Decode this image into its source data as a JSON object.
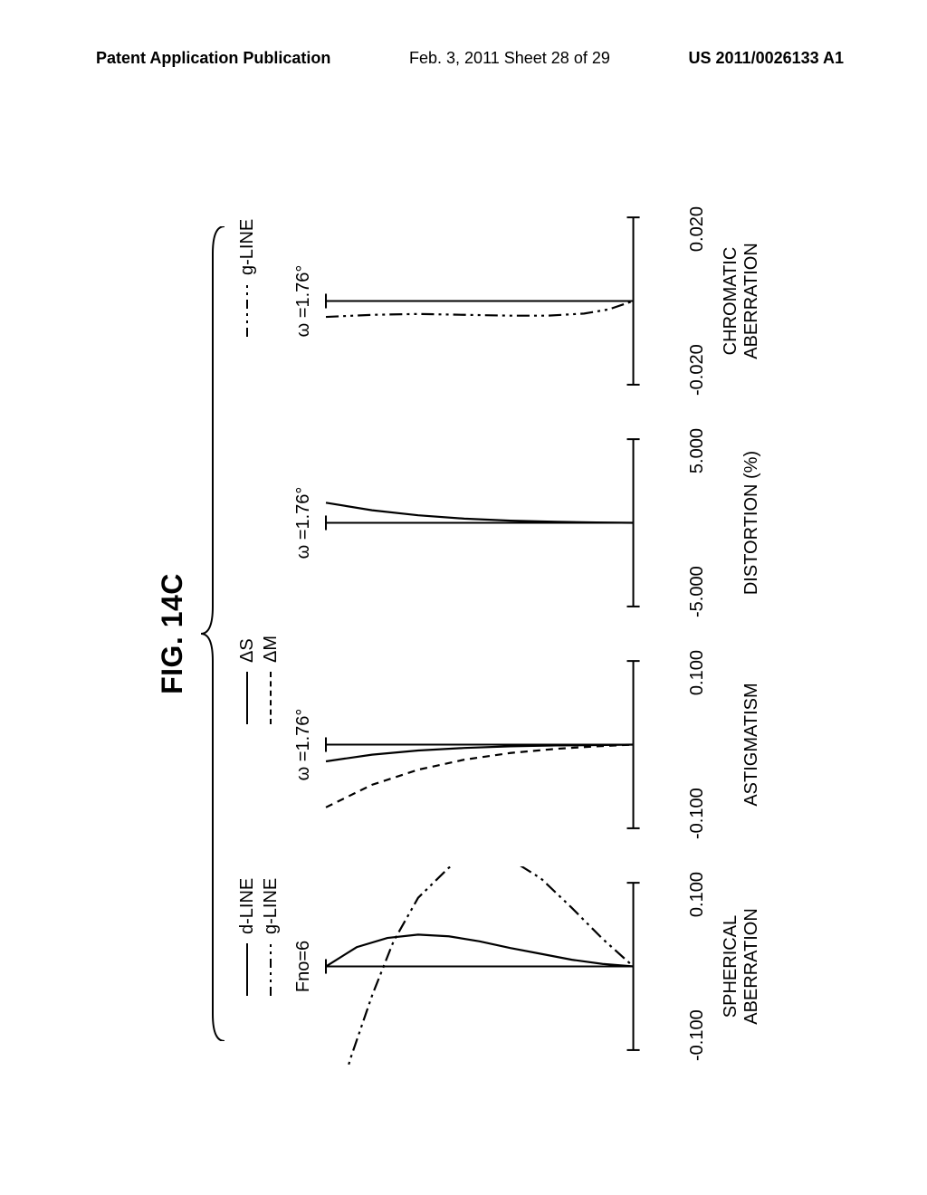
{
  "header": {
    "left": "Patent Application Publication",
    "center": "Feb. 3, 2011  Sheet 28 of 29",
    "right": "US 2011/0026133 A1"
  },
  "figure": {
    "title": "FIG. 14C",
    "page_bg": "#ffffff",
    "text_color": "#000000",
    "stroke_color": "#000000",
    "title_fontsize": 32,
    "label_fontsize": 20,
    "legends": {
      "spherical": [
        {
          "label": "d-LINE",
          "style": "solid"
        },
        {
          "label": "g-LINE",
          "style": "dashdot2"
        }
      ],
      "astigmatism": [
        {
          "label": "ΔS",
          "style": "solid"
        },
        {
          "label": "ΔM",
          "style": "dashed"
        }
      ],
      "chromatic": [
        {
          "label": "g-LINE",
          "style": "dashdot2"
        }
      ]
    },
    "plots": [
      {
        "key": "spherical",
        "title": "Fno=6",
        "x_min_label": "-0.100",
        "x_max_label": "0.100",
        "xlim": [
          -0.1,
          0.1
        ],
        "ylim": [
          0,
          1
        ],
        "caption": "SPHERICAL\nABERRATION",
        "series": [
          {
            "style": "solid",
            "points": [
              [
                0.0,
                1.0
              ],
              [
                0.023,
                0.9
              ],
              [
                0.034,
                0.8
              ],
              [
                0.038,
                0.7
              ],
              [
                0.036,
                0.6
              ],
              [
                0.03,
                0.5
              ],
              [
                0.022,
                0.4
              ],
              [
                0.015,
                0.3
              ],
              [
                0.008,
                0.2
              ],
              [
                0.003,
                0.1
              ],
              [
                0.0,
                0.0
              ]
            ]
          },
          {
            "style": "dashdot2",
            "points": [
              [
                -0.21,
                1.0
              ],
              [
                -0.11,
                0.92
              ],
              [
                -0.035,
                0.85
              ],
              [
                0.03,
                0.78
              ],
              [
                0.082,
                0.7
              ],
              [
                0.118,
                0.6
              ],
              [
                0.135,
                0.5
              ],
              [
                0.128,
                0.4
              ],
              [
                0.105,
                0.3
              ],
              [
                0.07,
                0.2
              ],
              [
                0.033,
                0.1
              ],
              [
                0.0,
                0.0
              ]
            ]
          }
        ]
      },
      {
        "key": "astigmatism",
        "title": "ω =1.76°",
        "x_min_label": "-0.100",
        "x_max_label": "0.100",
        "xlim": [
          -0.1,
          0.1
        ],
        "ylim": [
          0,
          1
        ],
        "caption": "ASTIGMATISM",
        "series": [
          {
            "style": "solid",
            "points": [
              [
                -0.02,
                1.0
              ],
              [
                -0.012,
                0.85
              ],
              [
                -0.007,
                0.7
              ],
              [
                -0.004,
                0.55
              ],
              [
                -0.002,
                0.4
              ],
              [
                -0.001,
                0.25
              ],
              [
                -0.0005,
                0.12
              ],
              [
                0.0,
                0.0
              ]
            ]
          },
          {
            "style": "dashed",
            "points": [
              [
                -0.075,
                1.0
              ],
              [
                -0.048,
                0.85
              ],
              [
                -0.03,
                0.7
              ],
              [
                -0.018,
                0.55
              ],
              [
                -0.01,
                0.4
              ],
              [
                -0.005,
                0.25
              ],
              [
                -0.002,
                0.12
              ],
              [
                0.0,
                0.0
              ]
            ]
          }
        ]
      },
      {
        "key": "distortion",
        "title": "ω =1.76°",
        "x_min_label": "-5.000",
        "x_max_label": "5.000",
        "xlim": [
          -5,
          5
        ],
        "ylim": [
          0,
          1
        ],
        "caption": "DISTORTION (%)",
        "series": [
          {
            "style": "solid",
            "points": [
              [
                1.2,
                1.0
              ],
              [
                0.75,
                0.85
              ],
              [
                0.45,
                0.7
              ],
              [
                0.25,
                0.55
              ],
              [
                0.13,
                0.4
              ],
              [
                0.06,
                0.25
              ],
              [
                0.02,
                0.12
              ],
              [
                0.0,
                0.0
              ]
            ]
          }
        ]
      },
      {
        "key": "chromatic",
        "title": "ω =1.76°",
        "x_min_label": "-0.020",
        "x_max_label": "0.020",
        "xlim": [
          -0.02,
          0.02
        ],
        "ylim": [
          0,
          1
        ],
        "caption": "CHROMATIC\nABERRATION",
        "series": [
          {
            "style": "dashdot2",
            "points": [
              [
                -0.0038,
                1.0
              ],
              [
                -0.0033,
                0.85
              ],
              [
                -0.0031,
                0.7
              ],
              [
                -0.0033,
                0.55
              ],
              [
                -0.0035,
                0.4
              ],
              [
                -0.0035,
                0.28
              ],
              [
                -0.003,
                0.16
              ],
              [
                -0.002,
                0.08
              ],
              [
                0.0,
                0.0
              ]
            ]
          }
        ]
      }
    ]
  }
}
